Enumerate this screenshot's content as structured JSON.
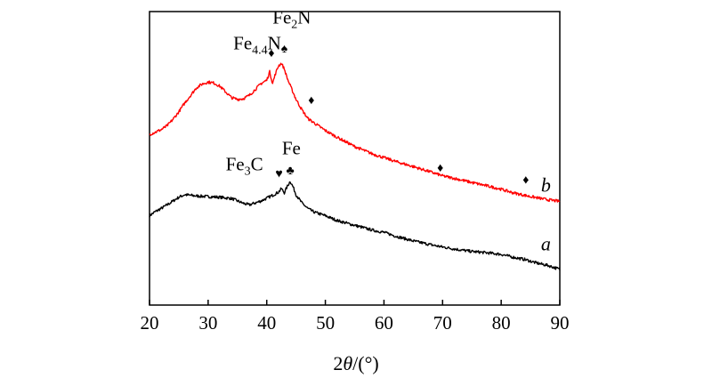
{
  "chart_data": {
    "type": "line",
    "title": "",
    "xlabel": {
      "prefix": "2",
      "symbol": "θ",
      "unit": "/(°)"
    },
    "ylabel": "",
    "xlim": [
      20,
      90
    ],
    "xticks": [
      "20",
      "30",
      "40",
      "50",
      "60",
      "70",
      "80",
      "90"
    ],
    "grid": false,
    "series": [
      {
        "name": "a",
        "color": "#000000",
        "x": [
          20,
          21,
          22,
          23,
          24,
          25,
          26,
          27,
          28,
          30,
          32,
          34,
          36,
          37,
          38,
          39,
          40,
          41,
          42,
          42.5,
          43,
          43.5,
          44,
          44.5,
          45,
          46,
          47,
          48,
          50,
          52,
          55,
          58,
          60,
          62,
          65,
          68,
          70,
          73,
          75,
          78,
          80,
          82,
          84,
          86,
          88,
          90
        ],
        "y": [
          0.6,
          0.73,
          0.83,
          0.94,
          1.06,
          1.18,
          1.26,
          1.24,
          1.22,
          1.2,
          1.18,
          1.14,
          0.99,
          0.94,
          1.0,
          1.06,
          1.15,
          1.24,
          1.34,
          1.45,
          1.32,
          1.52,
          1.68,
          1.5,
          1.26,
          1.0,
          0.83,
          0.72,
          0.6,
          0.45,
          0.3,
          0.15,
          0.08,
          -0.04,
          -0.19,
          -0.31,
          -0.38,
          -0.47,
          -0.52,
          -0.57,
          -0.61,
          -0.7,
          -0.77,
          -0.88,
          -0.96,
          -1.08
        ]
      },
      {
        "name": "b",
        "color": "#ff0000",
        "x": [
          20,
          21,
          22,
          23,
          24,
          25,
          26,
          27,
          28,
          29,
          30,
          31,
          32,
          33,
          34,
          35,
          36,
          37,
          38,
          39,
          40,
          40.5,
          41,
          41.5,
          42,
          42.5,
          43,
          43.5,
          44,
          45,
          46,
          47,
          48,
          50,
          52,
          55,
          58,
          60,
          62,
          65,
          68,
          70,
          73,
          75,
          78,
          80,
          82,
          85,
          88,
          90
        ],
        "y": [
          3.15,
          3.22,
          3.3,
          3.42,
          3.62,
          3.86,
          4.13,
          4.37,
          4.61,
          4.73,
          4.79,
          4.76,
          4.66,
          4.48,
          4.3,
          4.25,
          4.27,
          4.37,
          4.55,
          4.74,
          4.85,
          5.11,
          4.75,
          5.06,
          5.3,
          5.38,
          5.2,
          4.91,
          4.68,
          4.25,
          3.92,
          3.65,
          3.52,
          3.27,
          3.06,
          2.77,
          2.54,
          2.42,
          2.3,
          2.14,
          1.97,
          1.85,
          1.73,
          1.64,
          1.52,
          1.43,
          1.32,
          1.2,
          1.1,
          1.05
        ]
      }
    ],
    "annotations": [
      {
        "marker": "♦",
        "x": 40.8,
        "y": 5.68
      },
      {
        "marker": "♠",
        "x": 43.0,
        "y": 5.82
      },
      {
        "marker": "♦",
        "x": 47.6,
        "y": 4.2
      },
      {
        "marker": "♦",
        "x": 69.6,
        "y": 2.08
      },
      {
        "marker": "♦",
        "x": 84.2,
        "y": 1.7
      },
      {
        "marker": "♥",
        "x": 42.1,
        "y": 1.9
      },
      {
        "marker": "♣",
        "x": 44.0,
        "y": 2.0
      }
    ],
    "phase_labels": [
      {
        "base": "Fe",
        "sub": "4.4",
        "after": "N",
        "x": 34.3,
        "y": 5.82
      },
      {
        "base": "Fe",
        "sub": "2",
        "after": "N",
        "x": 41.0,
        "y": 6.62
      },
      {
        "base": "Fe",
        "sub": "3",
        "after": "C",
        "x": 33.0,
        "y": 2.02
      },
      {
        "base": "Fe",
        "sub": "",
        "after": "",
        "x": 42.6,
        "y": 2.53
      }
    ],
    "curve_labels": [
      {
        "text": "b",
        "x": 86.8,
        "y": 1.35
      },
      {
        "text": "a",
        "x": 86.8,
        "y": -0.48
      }
    ]
  }
}
